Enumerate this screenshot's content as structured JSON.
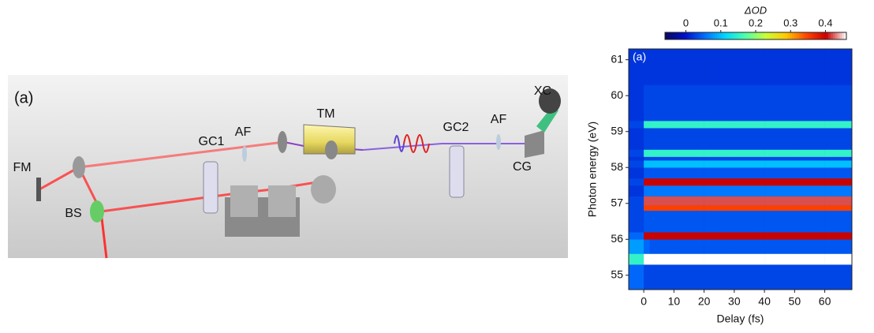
{
  "diagram": {
    "panel_label": "(a)",
    "labels": [
      "FM",
      "BS",
      "GC1",
      "AF",
      "TM",
      "GC2",
      "AF",
      "XC",
      "CG"
    ]
  },
  "chart_data": {
    "type": "heatmap",
    "panel_label": "(a)",
    "x_label": "Delay (fs)",
    "y_label": "Photon energy (eV)",
    "colorbar_label": "ΔOD",
    "x": [
      -5,
      0,
      2,
      10,
      20,
      30,
      40,
      50,
      60,
      69
    ],
    "y": [
      54.6,
      55.3,
      55.6,
      56.0,
      56.2,
      56.8,
      56.95,
      57.2,
      57.5,
      57.7,
      58.0,
      58.2,
      58.3,
      58.5,
      59.1,
      59.3,
      60.3,
      61.3
    ],
    "values": [
      [
        0.05,
        0.03,
        0.03,
        0.03,
        0.03,
        0.03,
        0.03,
        0.03,
        0.03
      ],
      [
        0.15,
        0.46,
        0.46,
        0.46,
        0.46,
        0.46,
        0.46,
        0.46,
        0.46
      ],
      [
        0.08,
        0.05,
        0.04,
        0.04,
        0.04,
        0.04,
        0.04,
        0.04,
        0.04
      ],
      [
        0.05,
        0.4,
        0.4,
        0.4,
        0.4,
        0.4,
        0.4,
        0.4,
        0.4
      ],
      [
        0.03,
        0.04,
        0.04,
        0.04,
        0.04,
        0.04,
        0.04,
        0.04,
        0.04
      ],
      [
        0.03,
        0.35,
        0.35,
        0.35,
        0.35,
        0.35,
        0.35,
        0.35,
        0.35
      ],
      [
        0.03,
        0.42,
        0.42,
        0.42,
        0.42,
        0.42,
        0.42,
        0.42,
        0.42
      ],
      [
        0.02,
        0.06,
        0.06,
        0.06,
        0.06,
        0.06,
        0.06,
        0.06,
        0.06
      ],
      [
        0.03,
        0.4,
        0.4,
        0.4,
        0.4,
        0.4,
        0.4,
        0.4,
        0.4
      ],
      [
        0.02,
        0.04,
        0.04,
        0.04,
        0.04,
        0.04,
        0.04,
        0.04,
        0.04
      ],
      [
        0.03,
        0.1,
        0.1,
        0.1,
        0.1,
        0.1,
        0.1,
        0.1,
        0.1
      ],
      [
        0.02,
        0.03,
        0.03,
        0.03,
        0.03,
        0.03,
        0.03,
        0.03,
        0.03
      ],
      [
        0.03,
        0.15,
        0.15,
        0.15,
        0.15,
        0.15,
        0.15,
        0.15,
        0.15
      ],
      [
        0.02,
        0.03,
        0.03,
        0.03,
        0.03,
        0.03,
        0.03,
        0.03,
        0.03
      ],
      [
        0.03,
        0.15,
        0.15,
        0.15,
        0.15,
        0.15,
        0.15,
        0.15,
        0.15
      ],
      [
        0.02,
        0.03,
        0.03,
        0.03,
        0.03,
        0.03,
        0.03,
        0.03,
        0.03
      ],
      [
        0.02,
        0.02,
        0.02,
        0.02,
        0.02,
        0.02,
        0.02,
        0.02,
        0.02
      ]
    ],
    "xlim": [
      -5,
      69
    ],
    "ylim": [
      54.6,
      61.3
    ],
    "xticks": [
      0,
      10,
      20,
      30,
      40,
      50,
      60
    ],
    "yticks": [
      55,
      56,
      57,
      58,
      59,
      60,
      61
    ],
    "clim": [
      -0.06,
      0.46
    ],
    "cticks": [
      0,
      0.1,
      0.2,
      0.3,
      0.4
    ],
    "colormap": [
      "#0a0a5a",
      "#0010c8",
      "#0070ff",
      "#00d8ff",
      "#50ffa8",
      "#c8ff38",
      "#ffc800",
      "#ff4800",
      "#c80000",
      "#ffffff"
    ]
  }
}
